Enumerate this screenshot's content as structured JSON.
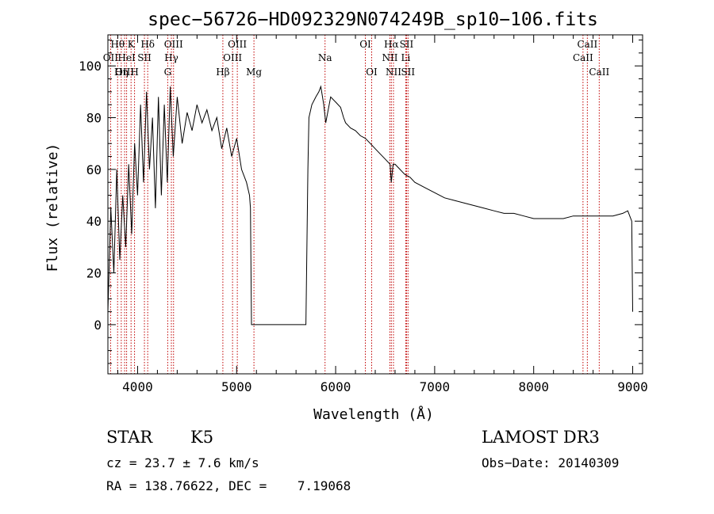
{
  "chart_data": {
    "type": "line",
    "title": "spec−56726−HD092329N074249B_sp10−106.fits",
    "xlabel": "Wavelength (Å)",
    "ylabel": "Flux (relative)",
    "xlim": [
      3700,
      9100
    ],
    "ylim": [
      -19,
      112
    ],
    "xticks": [
      4000,
      5000,
      6000,
      7000,
      8000,
      9000
    ],
    "xtick_labels": [
      "4000",
      "5000",
      "6000",
      "7000",
      "8000",
      "9000"
    ],
    "yticks": [
      0,
      20,
      40,
      60,
      80,
      100
    ],
    "ytick_labels": [
      "0",
      "20",
      "40",
      "60",
      "80",
      "100"
    ],
    "line_color": "#000000",
    "marker_color": "#c00000",
    "series": [
      {
        "name": "flux",
        "x": [
          3700,
          3730,
          3760,
          3790,
          3820,
          3850,
          3880,
          3910,
          3940,
          3970,
          4000,
          4030,
          4060,
          4090,
          4120,
          4150,
          4180,
          4210,
          4240,
          4270,
          4300,
          4330,
          4360,
          4400,
          4450,
          4500,
          4550,
          4600,
          4650,
          4700,
          4750,
          4800,
          4850,
          4900,
          4950,
          5000,
          5050,
          5100,
          5130,
          5140,
          5150,
          5200,
          5300,
          5400,
          5500,
          5600,
          5700,
          5720,
          5730,
          5760,
          5800,
          5830,
          5850,
          5880,
          5900,
          5950,
          6000,
          6050,
          6080,
          6100,
          6150,
          6200,
          6250,
          6300,
          6350,
          6400,
          6450,
          6500,
          6550,
          6562,
          6580,
          6600,
          6650,
          6700,
          6750,
          6800,
          6900,
          7000,
          7100,
          7200,
          7300,
          7400,
          7500,
          7600,
          7700,
          7800,
          7900,
          8000,
          8100,
          8200,
          8300,
          8400,
          8500,
          8600,
          8700,
          8800,
          8900,
          8950,
          8990,
          9000
        ],
        "y": [
          5,
          45,
          20,
          60,
          25,
          50,
          30,
          62,
          35,
          70,
          50,
          85,
          55,
          90,
          60,
          80,
          45,
          88,
          50,
          85,
          55,
          92,
          65,
          88,
          70,
          82,
          75,
          85,
          78,
          83,
          75,
          80,
          68,
          76,
          65,
          72,
          60,
          55,
          50,
          45,
          0,
          0,
          0,
          0,
          0,
          0,
          0,
          60,
          80,
          85,
          88,
          90,
          92,
          85,
          78,
          88,
          86,
          84,
          80,
          78,
          76,
          75,
          73,
          72,
          70,
          68,
          66,
          64,
          62,
          55,
          62,
          62,
          60,
          58,
          57,
          55,
          53,
          51,
          49,
          48,
          47,
          46,
          45,
          44,
          43,
          43,
          42,
          41,
          41,
          41,
          41,
          42,
          42,
          42,
          42,
          42,
          43,
          44,
          40,
          5
        ]
      }
    ],
    "line_markers": [
      {
        "label": "Hθ",
        "x": 3798,
        "row": 0
      },
      {
        "label": "OII",
        "x": 3727,
        "row": 1
      },
      {
        "label": "OIII",
        "x": 3869,
        "row": 2
      },
      {
        "label": "Hη",
        "x": 3835,
        "row": 2
      },
      {
        "label": "K",
        "x": 3934,
        "row": 0
      },
      {
        "label": "HeI",
        "x": 3889,
        "row": 1
      },
      {
        "label": "SII",
        "x": 4069,
        "row": 1
      },
      {
        "label": "H",
        "x": 3969,
        "row": 2
      },
      {
        "label": "Hδ",
        "x": 4102,
        "row": 0
      },
      {
        "label": "OIII",
        "x": 4363,
        "row": 0
      },
      {
        "label": "Hγ",
        "x": 4341,
        "row": 1
      },
      {
        "label": "G",
        "x": 4304,
        "row": 2
      },
      {
        "label": "Hβ",
        "x": 4861,
        "row": 2
      },
      {
        "label": "OIII",
        "x": 5007,
        "row": 0
      },
      {
        "label": "OIII",
        "x": 4959,
        "row": 1
      },
      {
        "label": "Mg",
        "x": 5175,
        "row": 2
      },
      {
        "label": "Na",
        "x": 5893,
        "row": 1
      },
      {
        "label": "OI",
        "x": 6300,
        "row": 0
      },
      {
        "label": "OI",
        "x": 6364,
        "row": 2
      },
      {
        "label": "Hα",
        "x": 6563,
        "row": 0
      },
      {
        "label": "NII",
        "x": 6548,
        "row": 1
      },
      {
        "label": "NII",
        "x": 6584,
        "row": 2
      },
      {
        "label": "SII",
        "x": 6716,
        "row": 0
      },
      {
        "label": "Li",
        "x": 6708,
        "row": 1
      },
      {
        "label": "SII",
        "x": 6731,
        "row": 2
      },
      {
        "label": "CaII",
        "x": 8542,
        "row": 0
      },
      {
        "label": "CaII",
        "x": 8498,
        "row": 1
      },
      {
        "label": "CaII",
        "x": 8662,
        "row": 2
      }
    ]
  },
  "info": {
    "object_class": "STAR",
    "subclass": "K5",
    "survey": "LAMOST DR3",
    "cz": "cz = 23.7 ± 7.6 km/s",
    "obs_date": "Obs−Date: 20140309",
    "radec": "RA = 138.76622, DEC =    7.19068"
  }
}
